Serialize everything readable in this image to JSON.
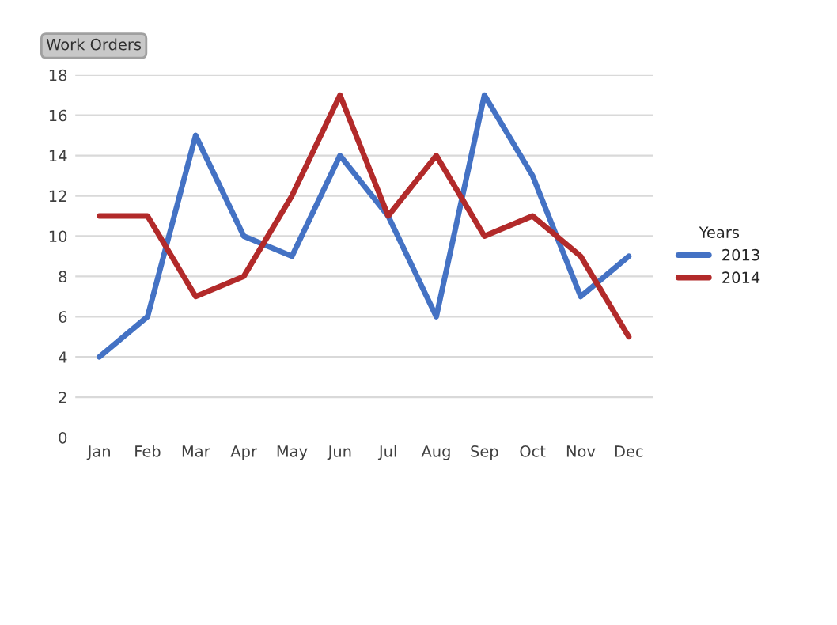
{
  "chart_data": {
    "type": "line",
    "title": "Work Orders",
    "legend_title": "Years",
    "categories": [
      "Jan",
      "Feb",
      "Mar",
      "Apr",
      "May",
      "Jun",
      "Jul",
      "Aug",
      "Sep",
      "Oct",
      "Nov",
      "Dec"
    ],
    "series": [
      {
        "name": "2013",
        "color": "#4472c4",
        "values": [
          4,
          6,
          15,
          10,
          9,
          14,
          11,
          6,
          17,
          13,
          7,
          9
        ]
      },
      {
        "name": "2014",
        "color": "#b22a2a",
        "values": [
          11,
          11,
          7,
          8,
          12,
          17,
          11,
          14,
          10,
          11,
          9,
          5
        ]
      }
    ],
    "ylim": [
      0,
      18
    ],
    "yticks": [
      0,
      2,
      4,
      6,
      8,
      10,
      12,
      14,
      16,
      18
    ],
    "grid": "y",
    "legend": "right",
    "line_style": "solid"
  }
}
